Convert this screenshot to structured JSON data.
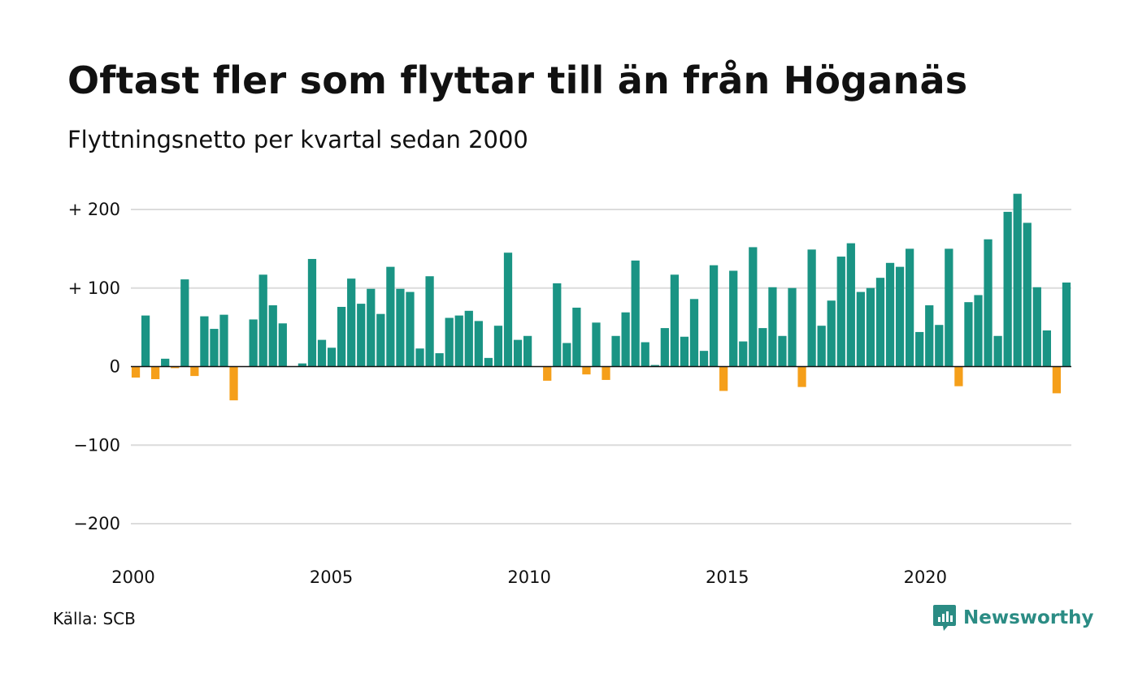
{
  "title": "Oftast fler som flyttar till än från Höganäs",
  "subtitle": "Flyttningsnetto per kvartal sedan 2000",
  "source": "Källa: SCB",
  "brand": "Newsworthy",
  "colors": {
    "positive": "#1a9484",
    "negative": "#f59f1a",
    "grid": "#dcdcdc",
    "brand": "#2b8c84"
  },
  "chart_data": {
    "type": "bar",
    "title": "Oftast fler som flyttar till än från Höganäs",
    "subtitle": "Flyttningsnetto per kvartal sedan 2000",
    "x_start": 2000,
    "periods_per_year": 4,
    "xlim": [
      2000,
      2023.75
    ],
    "ylim": [
      -200,
      200
    ],
    "x_ticks": [
      {
        "value": 2000,
        "label": "2000"
      },
      {
        "value": 2005,
        "label": "2005"
      },
      {
        "value": 2010,
        "label": "2010"
      },
      {
        "value": 2015,
        "label": "2015"
      },
      {
        "value": 2020,
        "label": "2020"
      }
    ],
    "y_ticks": [
      {
        "value": 200,
        "label": "+ 200"
      },
      {
        "value": 100,
        "label": "+ 100"
      },
      {
        "value": 0,
        "label": "0"
      },
      {
        "value": -100,
        "label": "−100"
      },
      {
        "value": -200,
        "label": "−200"
      }
    ],
    "grid": true,
    "legend": "none",
    "values": [
      -14,
      65,
      -16,
      10,
      -2,
      111,
      -12,
      64,
      48,
      66,
      -43,
      0,
      60,
      117,
      78,
      55,
      0,
      4,
      137,
      34,
      24,
      76,
      112,
      80,
      99,
      67,
      127,
      99,
      95,
      23,
      115,
      17,
      62,
      65,
      71,
      58,
      11,
      52,
      145,
      34,
      39,
      0,
      -18,
      106,
      30,
      75,
      -10,
      56,
      -17,
      39,
      69,
      135,
      31,
      2,
      49,
      117,
      38,
      86,
      20,
      129,
      -31,
      122,
      32,
      152,
      49,
      101,
      39,
      100,
      -26,
      149,
      52,
      84,
      140,
      157,
      95,
      100,
      113,
      132,
      127,
      150,
      44,
      78,
      53,
      150,
      -25,
      82,
      91,
      162,
      39,
      197,
      220,
      183,
      101,
      46,
      -34,
      107
    ]
  }
}
